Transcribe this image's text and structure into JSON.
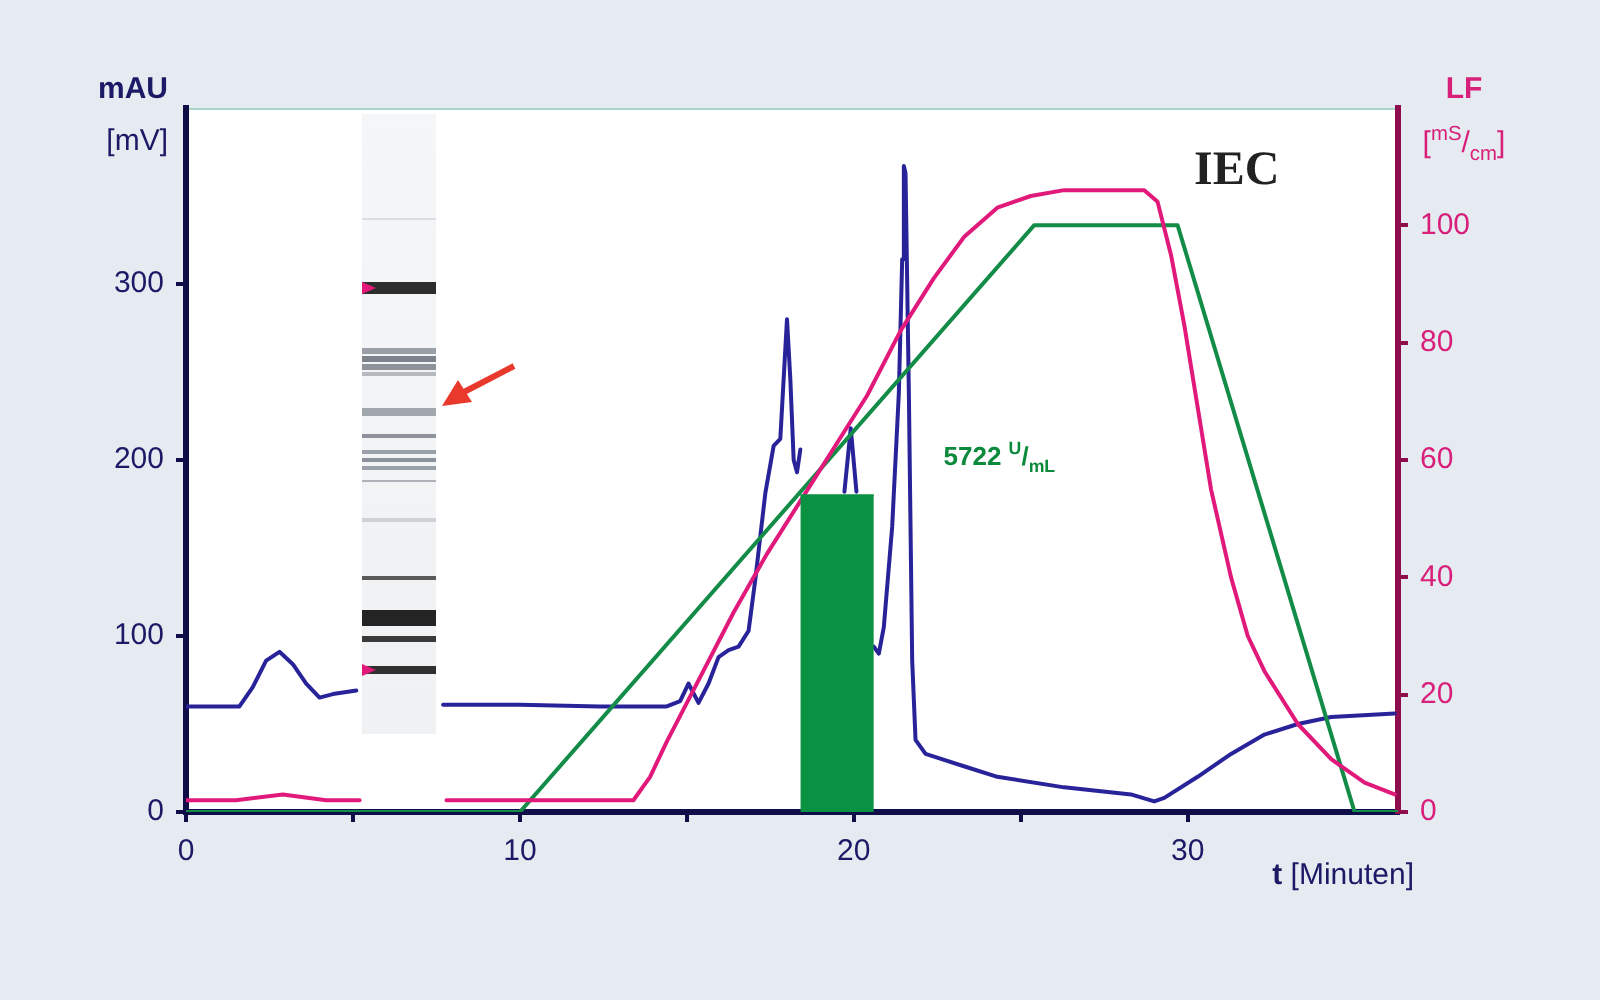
{
  "chart_data": {
    "type": "line",
    "title": "IEC",
    "xlabel": "t [Minuten]",
    "ylabel": "mAU\n[mV]",
    "y2label": "LF\n[$^{mS}$/$_{cm}$]",
    "annotations": [
      "5722 $^{U}$/$_{mL}$"
    ],
    "xlim": [
      0,
      36.3
    ],
    "xticks": [
      0,
      {
        "value": 5,
        "label": null
      },
      10,
      {
        "value": 15,
        "label": null
      },
      20,
      {
        "value": 25,
        "label": null
      },
      30
    ],
    "ylim": [
      0,
      400
    ],
    "yticks": [
      0,
      100,
      200,
      300
    ],
    "y2lim": [
      0,
      120
    ],
    "y2ticks": [
      0,
      20,
      40,
      60,
      80,
      100
    ],
    "series": [
      {
        "type": "area",
        "color": "#0a9141",
        "x": [
          18.4,
          20.6
        ],
        "values": [
          180,
          180
        ]
      },
      {
        "color": "#e0197b",
        "axis": "y2",
        "x": [
          0,
          1.5,
          2.9,
          4.2,
          5.2,
          6.4,
          7.8,
          10,
          12.4,
          13.4,
          13.9,
          14.4,
          15.4,
          16.4,
          17.4,
          18.4,
          19.4,
          20.4,
          21.4,
          22.4,
          23.3,
          24.3,
          25.3,
          26.3,
          27.3,
          28.3,
          28.7,
          29.1,
          29.5,
          29.9,
          30.3,
          30.7,
          31.3,
          31.8,
          32.3,
          33.3,
          34.3,
          35.3,
          36.2
        ],
        "values": [
          2,
          2,
          3,
          2,
          2,
          null,
          2,
          2,
          2,
          2,
          6,
          12,
          23,
          34,
          44,
          53,
          62,
          71,
          82,
          91,
          98,
          103,
          105,
          106,
          106,
          106,
          106,
          104,
          95,
          83,
          69,
          55,
          40,
          30,
          24,
          15,
          9,
          5,
          3
        ]
      },
      {
        "color": "#138c48",
        "axis": "y2",
        "x": [
          0,
          10,
          25.4,
          29.7,
          35,
          36.3
        ],
        "values": [
          0,
          0,
          100,
          100,
          0,
          0
        ]
      },
      {
        "color": "#29239a",
        "x": [
          0,
          1.6,
          2,
          2.4,
          2.8,
          3.2,
          3.6,
          4,
          4.4,
          5.1,
          6.4,
          7.7,
          10,
          12.4,
          14.4,
          14.8,
          15.05,
          15.35,
          15.65,
          15.95,
          16.25,
          16.55,
          16.85,
          17.05,
          17.35,
          17.6,
          17.8,
          18,
          18.1,
          18.2,
          18.3,
          18.4,
          19.1,
          19.72,
          19.91,
          20.08,
          20.3,
          20.6,
          20.75,
          20.9,
          21.15,
          21.35,
          21.45,
          21.5,
          21.55,
          21.65,
          21.75,
          21.85,
          22.15,
          23.3,
          24.3,
          26.3,
          28.3,
          29,
          29.3,
          30.3,
          31.3,
          32.3,
          33.3,
          34.3,
          36.2
        ],
        "values": [
          60,
          60,
          71,
          86,
          91,
          84,
          73,
          65,
          67,
          69,
          null,
          61,
          61,
          60,
          60,
          63,
          73,
          62,
          73,
          88,
          92,
          94,
          103,
          132,
          181,
          208,
          212,
          280,
          246,
          200,
          193,
          206,
          null,
          182,
          218,
          182,
          null,
          94,
          90,
          105,
          162,
          238,
          314,
          367,
          363,
          238,
          86,
          41,
          33,
          26,
          20,
          14,
          10,
          6,
          8,
          20,
          33,
          44,
          50,
          54,
          56
        ]
      }
    ]
  }
}
